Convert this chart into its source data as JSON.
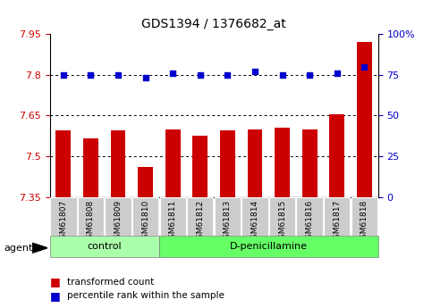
{
  "title": "GDS1394 / 1376682_at",
  "categories": [
    "GSM61807",
    "GSM61808",
    "GSM61809",
    "GSM61810",
    "GSM61811",
    "GSM61812",
    "GSM61813",
    "GSM61814",
    "GSM61815",
    "GSM61816",
    "GSM61817",
    "GSM61818"
  ],
  "bar_values": [
    7.595,
    7.565,
    7.595,
    7.46,
    7.6,
    7.575,
    7.595,
    7.6,
    7.605,
    7.6,
    7.655,
    7.92
  ],
  "dot_values": [
    75,
    75,
    75,
    73,
    76,
    75,
    75,
    77,
    75,
    75,
    76,
    80
  ],
  "bar_bottom": 7.35,
  "bar_color": "#cc0000",
  "dot_color": "#0000cc",
  "ylim_left": [
    7.35,
    7.95
  ],
  "ylim_right": [
    0,
    100
  ],
  "yticks_left": [
    7.35,
    7.5,
    7.65,
    7.8,
    7.95
  ],
  "ytick_labels_left": [
    "7.35",
    "7.5",
    "7.65",
    "7.8",
    "7.95"
  ],
  "yticks_right": [
    0,
    25,
    50,
    75,
    100
  ],
  "ytick_labels_right": [
    "0",
    "25",
    "50",
    "75",
    "100%"
  ],
  "grid_values": [
    7.5,
    7.65,
    7.8
  ],
  "control_count": 4,
  "control_label": "control",
  "treatment_label": "D-penicillamine",
  "agent_label": "agent",
  "legend_bar_label": "transformed count",
  "legend_dot_label": "percentile rank within the sample",
  "bg_color_control": "#aaffaa",
  "bg_color_treatment": "#66ff66",
  "tick_bg_color": "#cccccc",
  "bar_width": 0.55
}
